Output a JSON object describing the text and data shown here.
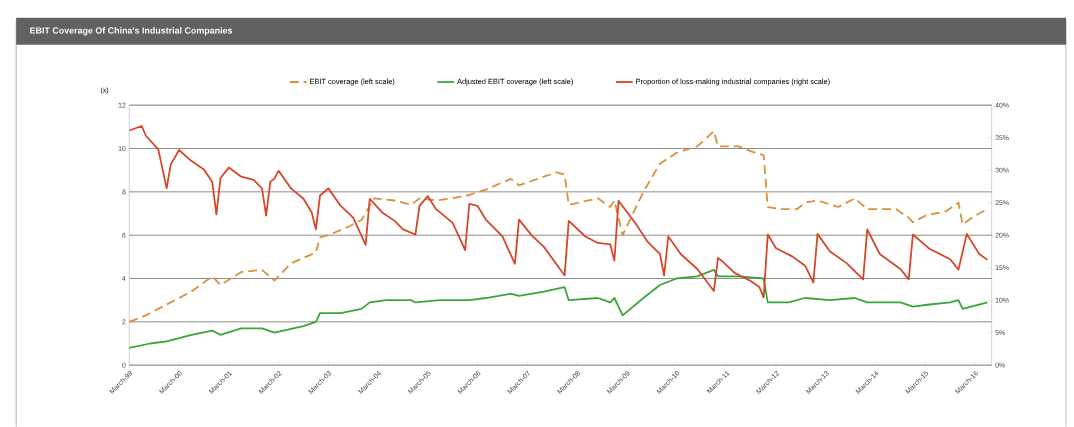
{
  "chart_data": {
    "type": "line",
    "title": "EBIT Coverage Of China's Industrial Companies",
    "ylabel": "(x)",
    "xlim": [
      "1999-03",
      "2016-07"
    ],
    "xticks": [
      {
        "value": "1999-03",
        "label": "March-99"
      },
      {
        "value": "2000-03",
        "label": "March-00"
      },
      {
        "value": "2001-03",
        "label": "March-01"
      },
      {
        "value": "2002-03",
        "label": "March-02"
      },
      {
        "value": "2003-03",
        "label": "March-03"
      },
      {
        "value": "2004-03",
        "label": "March-04"
      },
      {
        "value": "2005-03",
        "label": "March-05"
      },
      {
        "value": "2006-03",
        "label": "March-06"
      },
      {
        "value": "2007-03",
        "label": "March-07"
      },
      {
        "value": "2008-03",
        "label": "March-08"
      },
      {
        "value": "2009-03",
        "label": "March-09"
      },
      {
        "value": "2010-03",
        "label": "March-10"
      },
      {
        "value": "2011-03",
        "label": "March-11"
      },
      {
        "value": "2012-03",
        "label": "March-12"
      },
      {
        "value": "2013-03",
        "label": "March-13"
      },
      {
        "value": "2014-03",
        "label": "March-14"
      },
      {
        "value": "2015-03",
        "label": "March-15"
      },
      {
        "value": "2016-03",
        "label": "March-16"
      }
    ],
    "ylim": [
      0,
      12
    ],
    "yticks": [
      0,
      2,
      4,
      6,
      8,
      10,
      12
    ],
    "y2lim": [
      0,
      40
    ],
    "y2ticks": [
      {
        "value": 0,
        "label": "0%"
      },
      {
        "value": 5,
        "label": "5%"
      },
      {
        "value": 10,
        "label": "10%"
      },
      {
        "value": 15,
        "label": "15%"
      },
      {
        "value": 20,
        "label": "20%"
      },
      {
        "value": 25,
        "label": "25%"
      },
      {
        "value": 30,
        "label": "30%"
      },
      {
        "value": 35,
        "label": "35%"
      },
      {
        "value": 40,
        "label": "40%"
      }
    ],
    "grid": "y",
    "legend": "top",
    "series": [
      {
        "name": "EBIT coverage (left scale)",
        "color": "#d9913a",
        "line_style": "dashed",
        "x": [
          "1999-03",
          "1999-07",
          "1999-12",
          "2000-06",
          "2000-11",
          "2001-01",
          "2001-06",
          "2001-11",
          "2002-02",
          "2002-06",
          "2002-12",
          "2003-01",
          "2003-03",
          "2003-08",
          "2003-11",
          "2004-02",
          "2004-07",
          "2004-11",
          "2005-01",
          "2005-05",
          "2005-12",
          "2006-05",
          "2006-11",
          "2007-01",
          "2007-07",
          "2007-10",
          "2007-12",
          "2008-01",
          "2008-08",
          "2008-11",
          "2008-12",
          "2009-02",
          "2009-07",
          "2009-11",
          "2010-03",
          "2010-08",
          "2010-12",
          "2011-01",
          "2011-06",
          "2011-10",
          "2011-12",
          "2012-01",
          "2012-04",
          "2012-08",
          "2012-10",
          "2013-01",
          "2013-06",
          "2013-10",
          "2014-01",
          "2014-08",
          "2014-11",
          "2014-12",
          "2015-03",
          "2015-08",
          "2015-11",
          "2015-12",
          "2016-03",
          "2016-06"
        ],
        "values": [
          2.0,
          2.3,
          2.8,
          3.4,
          4.1,
          3.7,
          4.3,
          4.4,
          3.9,
          4.7,
          5.2,
          5.9,
          6.0,
          6.4,
          6.7,
          7.7,
          7.6,
          7.4,
          7.7,
          7.6,
          7.8,
          8.1,
          8.6,
          8.3,
          8.7,
          8.9,
          8.8,
          7.4,
          7.7,
          7.3,
          7.6,
          6.0,
          8.0,
          9.3,
          9.8,
          10.1,
          10.8,
          10.1,
          10.1,
          9.8,
          9.7,
          7.3,
          7.2,
          7.2,
          7.5,
          7.6,
          7.3,
          7.7,
          7.2,
          7.2,
          6.8,
          6.6,
          6.9,
          7.1,
          7.5,
          6.5,
          6.9,
          7.2
        ]
      },
      {
        "name": "Adjusted EBIT coverage (left scale)",
        "color": "#3aa53a",
        "x": [
          "1999-03",
          "1999-08",
          "1999-12",
          "2000-06",
          "2000-11",
          "2001-01",
          "2001-06",
          "2001-11",
          "2002-02",
          "2002-09",
          "2002-12",
          "2003-01",
          "2003-06",
          "2003-11",
          "2004-01",
          "2004-05",
          "2004-11",
          "2004-12",
          "2005-06",
          "2006-01",
          "2006-05",
          "2006-11",
          "2007-01",
          "2007-07",
          "2007-12",
          "2008-01",
          "2008-08",
          "2008-11",
          "2008-12",
          "2009-02",
          "2009-07",
          "2009-11",
          "2010-03",
          "2010-08",
          "2010-12",
          "2011-01",
          "2011-06",
          "2011-12",
          "2012-01",
          "2012-06",
          "2012-10",
          "2013-04",
          "2013-10",
          "2014-01",
          "2014-09",
          "2014-12",
          "2015-04",
          "2015-09",
          "2015-11",
          "2015-12",
          "2016-06"
        ],
        "values": [
          0.8,
          1.0,
          1.1,
          1.4,
          1.6,
          1.4,
          1.7,
          1.7,
          1.5,
          1.8,
          2.0,
          2.4,
          2.4,
          2.6,
          2.9,
          3.0,
          3.0,
          2.9,
          3.0,
          3.0,
          3.1,
          3.3,
          3.2,
          3.4,
          3.6,
          3.0,
          3.1,
          2.9,
          3.1,
          2.3,
          3.1,
          3.7,
          4.0,
          4.1,
          4.4,
          4.1,
          4.1,
          4.0,
          2.9,
          2.9,
          3.1,
          3.0,
          3.1,
          2.9,
          2.9,
          2.7,
          2.8,
          2.9,
          3.0,
          2.6,
          2.9
        ]
      },
      {
        "name": "Proportion of loss-making industrial companies (right scale)",
        "color": "#d4472a",
        "axis": "y2",
        "x": [
          "1999-03",
          "1999-06",
          "1999-07",
          "1999-10",
          "1999-12",
          "2000-01",
          "2000-03",
          "2000-06",
          "2000-09",
          "2000-11",
          "2000-12",
          "2001-01",
          "2001-03",
          "2001-06",
          "2001-09",
          "2001-11",
          "2001-12",
          "2002-01",
          "2002-02",
          "2002-03",
          "2002-06",
          "2002-09",
          "2002-11",
          "2002-12",
          "2003-01",
          "2003-03",
          "2003-06",
          "2003-09",
          "2003-12",
          "2004-01",
          "2004-04",
          "2004-07",
          "2004-09",
          "2004-12",
          "2005-01",
          "2005-03",
          "2005-05",
          "2005-09",
          "2005-12",
          "2006-01",
          "2006-03",
          "2006-05",
          "2006-09",
          "2006-12",
          "2007-01",
          "2007-04",
          "2007-07",
          "2007-12",
          "2008-01",
          "2008-05",
          "2008-08",
          "2008-11",
          "2008-12",
          "2009-01",
          "2009-05",
          "2009-08",
          "2009-11",
          "2009-12",
          "2010-01",
          "2010-04",
          "2010-08",
          "2010-12",
          "2011-01",
          "2011-02",
          "2011-05",
          "2011-09",
          "2011-11",
          "2011-12",
          "2012-01",
          "2012-03",
          "2012-07",
          "2012-10",
          "2012-12",
          "2013-01",
          "2013-04",
          "2013-08",
          "2013-12",
          "2014-01",
          "2014-04",
          "2014-09",
          "2014-11",
          "2014-12",
          "2015-04",
          "2015-09",
          "2015-11",
          "2016-01",
          "2016-04",
          "2016-06"
        ],
        "values": [
          36.1,
          36.8,
          35.3,
          33.2,
          27.2,
          30.9,
          33.1,
          31.4,
          30.1,
          28.2,
          23.2,
          28.8,
          30.4,
          29.0,
          28.5,
          27.2,
          23.0,
          28.2,
          28.7,
          29.9,
          27.2,
          25.6,
          23.5,
          20.9,
          26.1,
          27.2,
          24.5,
          22.7,
          18.5,
          25.6,
          23.5,
          22.2,
          20.9,
          20.1,
          24.5,
          26.0,
          24.0,
          21.9,
          17.7,
          24.8,
          24.5,
          22.4,
          19.8,
          15.6,
          22.4,
          20.0,
          18.2,
          13.8,
          22.2,
          19.8,
          18.8,
          18.6,
          16.1,
          25.3,
          21.9,
          19.0,
          17.1,
          13.8,
          19.8,
          17.1,
          14.8,
          11.4,
          16.5,
          16.0,
          14.2,
          12.9,
          12.0,
          10.4,
          20.1,
          18.0,
          16.7,
          15.3,
          12.7,
          20.2,
          17.5,
          15.7,
          13.2,
          20.9,
          17.1,
          14.8,
          13.2,
          20.1,
          17.9,
          16.3,
          14.7,
          20.2,
          17.1,
          16.2
        ]
      }
    ]
  }
}
